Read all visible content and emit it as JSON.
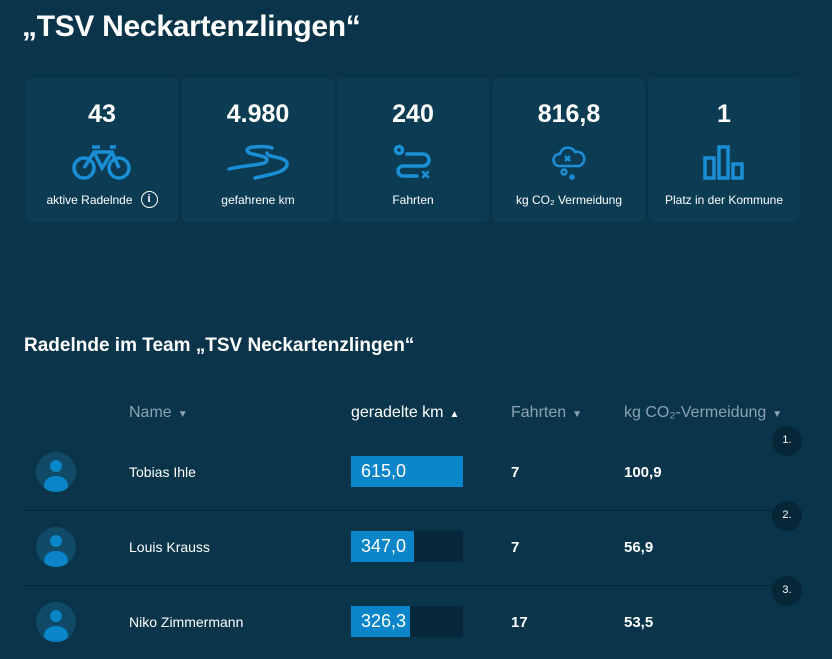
{
  "title": "„TSV Neckartenzlingen“",
  "colors": {
    "background": "#0a3449",
    "card": "#0c3c53",
    "accent": "#1a8fd6",
    "bar_fill": "#0a85c9",
    "bar_track": "#06283a"
  },
  "stats": [
    {
      "value": "43",
      "label": "aktive Radelnde",
      "icon": "bicycle-icon",
      "info": "i"
    },
    {
      "value": "4.980",
      "label": "gefahrene km",
      "icon": "road-icon"
    },
    {
      "value": "240",
      "label": "Fahrten",
      "icon": "route-icon"
    },
    {
      "value": "816,8",
      "label": "kg CO₂ Vermeidung",
      "icon": "cloud-co2-icon"
    },
    {
      "value": "1",
      "label": "Platz in der Kommune",
      "icon": "bar-chart-icon"
    }
  ],
  "team_heading": "Radelnde im Team „TSV Neckartenzlingen“",
  "columns": [
    {
      "label": "Name",
      "sort": "down"
    },
    {
      "label": "geradelte km",
      "sort": "up",
      "active": true
    },
    {
      "label": "Fahrten",
      "sort": "down"
    },
    {
      "label": "kg CO₂-Vermeidung",
      "sort": "down"
    }
  ],
  "sort_glyphs": {
    "up": "▲",
    "down": "▼"
  },
  "rows": [
    {
      "rank": "1.",
      "name": "Tobias Ihle",
      "km": "615,0",
      "km_fraction": 1.0,
      "fahrten": "7",
      "co2": "100,9"
    },
    {
      "rank": "2.",
      "name": "Louis Krauss",
      "km": "347,0",
      "km_fraction": 0.564,
      "fahrten": "7",
      "co2": "56,9"
    },
    {
      "rank": "3.",
      "name": "Niko Zimmermann",
      "km": "326,3",
      "km_fraction": 0.531,
      "fahrten": "17",
      "co2": "53,5"
    }
  ]
}
